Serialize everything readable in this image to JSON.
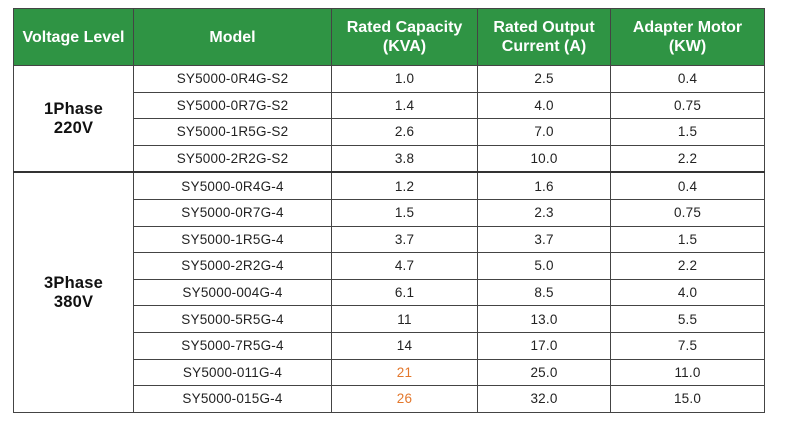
{
  "colors": {
    "header_bg": "#2f9444",
    "header_text": "#ffffff",
    "highlight": "#e3782d"
  },
  "headers": {
    "voltage": "Voltage Level",
    "model": "Model",
    "capacity_1": "Rated Capacity",
    "capacity_2": "(KVA)",
    "current_1": "Rated Output",
    "current_2": "Current (A)",
    "motor_1": "Adapter Motor",
    "motor_2": "(KW)"
  },
  "groups": [
    {
      "phase": "1Phase",
      "voltage": "220V",
      "rows": [
        {
          "model": "SY5000-0R4G-S2",
          "capacity": "1.0",
          "current": "2.5",
          "motor": "0.4"
        },
        {
          "model": "SY5000-0R7G-S2",
          "capacity": "1.4",
          "current": "4.0",
          "motor": "0.75"
        },
        {
          "model": "SY5000-1R5G-S2",
          "capacity": "2.6",
          "current": "7.0",
          "motor": "1.5"
        },
        {
          "model": "SY5000-2R2G-S2",
          "capacity": "3.8",
          "current": "10.0",
          "motor": "2.2"
        }
      ]
    },
    {
      "phase": "3Phase",
      "voltage": "380V",
      "rows": [
        {
          "model": "SY5000-0R4G-4",
          "capacity": "1.2",
          "current": "1.6",
          "motor": "0.4"
        },
        {
          "model": "SY5000-0R7G-4",
          "capacity": "1.5",
          "current": "2.3",
          "motor": "0.75"
        },
        {
          "model": "SY5000-1R5G-4",
          "capacity": "3.7",
          "current": "3.7",
          "motor": "1.5"
        },
        {
          "model": "SY5000-2R2G-4",
          "capacity": "4.7",
          "current": "5.0",
          "motor": "2.2"
        },
        {
          "model": "SY5000-004G-4",
          "capacity": "6.1",
          "current": "8.5",
          "motor": "4.0"
        },
        {
          "model": "SY5000-5R5G-4",
          "capacity": "11",
          "current": "13.0",
          "motor": "5.5"
        },
        {
          "model": "SY5000-7R5G-4",
          "capacity": "14",
          "current": "17.0",
          "motor": "7.5"
        },
        {
          "model": "SY5000-011G-4",
          "capacity": "21",
          "current": "25.0",
          "motor": "11.0",
          "highlight_capacity": true
        },
        {
          "model": "SY5000-015G-4",
          "capacity": "26",
          "current": "32.0",
          "motor": "15.0",
          "highlight_capacity": true
        }
      ]
    }
  ]
}
